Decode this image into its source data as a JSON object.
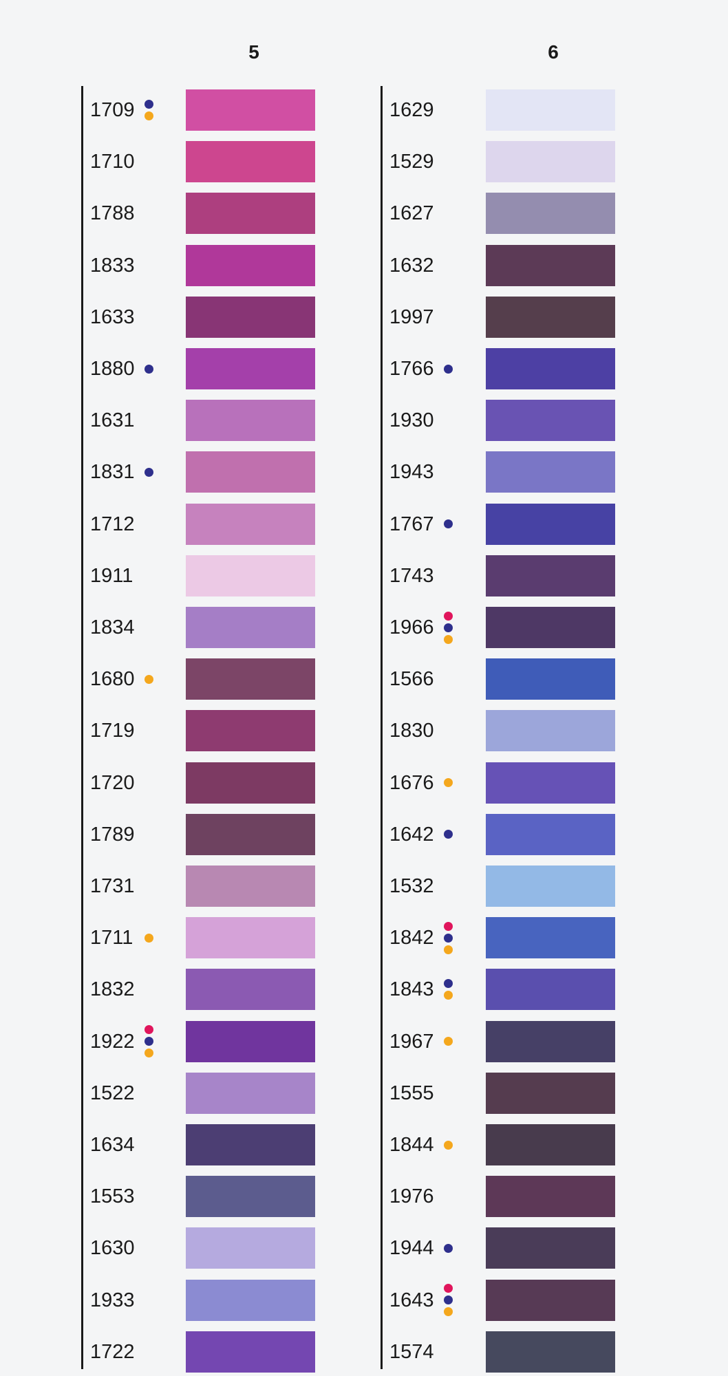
{
  "dot_colors": {
    "red": "#e0155c",
    "blue": "#2e2f8c",
    "yellow": "#f4a71d"
  },
  "columns": [
    {
      "number": "5",
      "rows": [
        {
          "code": "1709",
          "dots": [
            "blue",
            "yellow"
          ],
          "color": "#d14fa3"
        },
        {
          "code": "1710",
          "dots": [],
          "color": "#cd468f"
        },
        {
          "code": "1788",
          "dots": [],
          "color": "#ad3f7f"
        },
        {
          "code": "1833",
          "dots": [],
          "color": "#b0389a"
        },
        {
          "code": "1633",
          "dots": [],
          "color": "#883575"
        },
        {
          "code": "1880",
          "dots": [
            "blue"
          ],
          "color": "#a440aa"
        },
        {
          "code": "1631",
          "dots": [],
          "color": "#b871bb"
        },
        {
          "code": "1831",
          "dots": [
            "blue"
          ],
          "color": "#c070ae"
        },
        {
          "code": "1712",
          "dots": [],
          "color": "#c682be"
        },
        {
          "code": "1911",
          "dots": [],
          "color": "#ecc9e5"
        },
        {
          "code": "1834",
          "dots": [],
          "color": "#a57ec6"
        },
        {
          "code": "1680",
          "dots": [
            "yellow"
          ],
          "color": "#7c4567"
        },
        {
          "code": "1719",
          "dots": [],
          "color": "#8e3b70"
        },
        {
          "code": "1720",
          "dots": [],
          "color": "#7d3a63"
        },
        {
          "code": "1789",
          "dots": [],
          "color": "#6e4260"
        },
        {
          "code": "1731",
          "dots": [],
          "color": "#b888b2"
        },
        {
          "code": "1711",
          "dots": [
            "yellow"
          ],
          "color": "#d5a2d8"
        },
        {
          "code": "1832",
          "dots": [],
          "color": "#8b5ab2"
        },
        {
          "code": "1922",
          "dots": [
            "red",
            "blue",
            "yellow"
          ],
          "color": "#70359e"
        },
        {
          "code": "1522",
          "dots": [],
          "color": "#a785c9"
        },
        {
          "code": "1634",
          "dots": [],
          "color": "#4c3e73"
        },
        {
          "code": "1553",
          "dots": [],
          "color": "#5c5c8e"
        },
        {
          "code": "1630",
          "dots": [],
          "color": "#b5aadf"
        },
        {
          "code": "1933",
          "dots": [],
          "color": "#8b8bd2"
        },
        {
          "code": "1722",
          "dots": [],
          "color": "#7447b1"
        }
      ]
    },
    {
      "number": "6",
      "rows": [
        {
          "code": "1629",
          "dots": [],
          "color": "#e3e5f5"
        },
        {
          "code": "1529",
          "dots": [],
          "color": "#ddd6ed"
        },
        {
          "code": "1627",
          "dots": [],
          "color": "#948daf"
        },
        {
          "code": "1632",
          "dots": [],
          "color": "#5c3a56"
        },
        {
          "code": "1997",
          "dots": [],
          "color": "#553e4c"
        },
        {
          "code": "1766",
          "dots": [
            "blue"
          ],
          "color": "#4d40a4"
        },
        {
          "code": "1930",
          "dots": [],
          "color": "#6953b3"
        },
        {
          "code": "1943",
          "dots": [],
          "color": "#7a76c6"
        },
        {
          "code": "1767",
          "dots": [
            "blue"
          ],
          "color": "#4742a4"
        },
        {
          "code": "1743",
          "dots": [],
          "color": "#5a3c6f"
        },
        {
          "code": "1966",
          "dots": [
            "red",
            "blue",
            "yellow"
          ],
          "color": "#4e3865"
        },
        {
          "code": "1566",
          "dots": [],
          "color": "#3f5cb8"
        },
        {
          "code": "1830",
          "dots": [],
          "color": "#9ca6da"
        },
        {
          "code": "1676",
          "dots": [
            "yellow"
          ],
          "color": "#6652b6"
        },
        {
          "code": "1642",
          "dots": [
            "blue"
          ],
          "color": "#5a63c4"
        },
        {
          "code": "1532",
          "dots": [],
          "color": "#93b9e6"
        },
        {
          "code": "1842",
          "dots": [
            "red",
            "blue",
            "yellow"
          ],
          "color": "#4864bf"
        },
        {
          "code": "1843",
          "dots": [
            "blue",
            "yellow"
          ],
          "color": "#5a4fae"
        },
        {
          "code": "1967",
          "dots": [
            "yellow"
          ],
          "color": "#464066"
        },
        {
          "code": "1555",
          "dots": [],
          "color": "#553c4f"
        },
        {
          "code": "1844",
          "dots": [
            "yellow"
          ],
          "color": "#483b4d"
        },
        {
          "code": "1976",
          "dots": [],
          "color": "#5d3857"
        },
        {
          "code": "1944",
          "dots": [
            "blue"
          ],
          "color": "#4a3c58"
        },
        {
          "code": "1643",
          "dots": [
            "red",
            "blue",
            "yellow"
          ],
          "color": "#573a55"
        },
        {
          "code": "1574",
          "dots": [],
          "color": "#46495e"
        }
      ]
    }
  ]
}
